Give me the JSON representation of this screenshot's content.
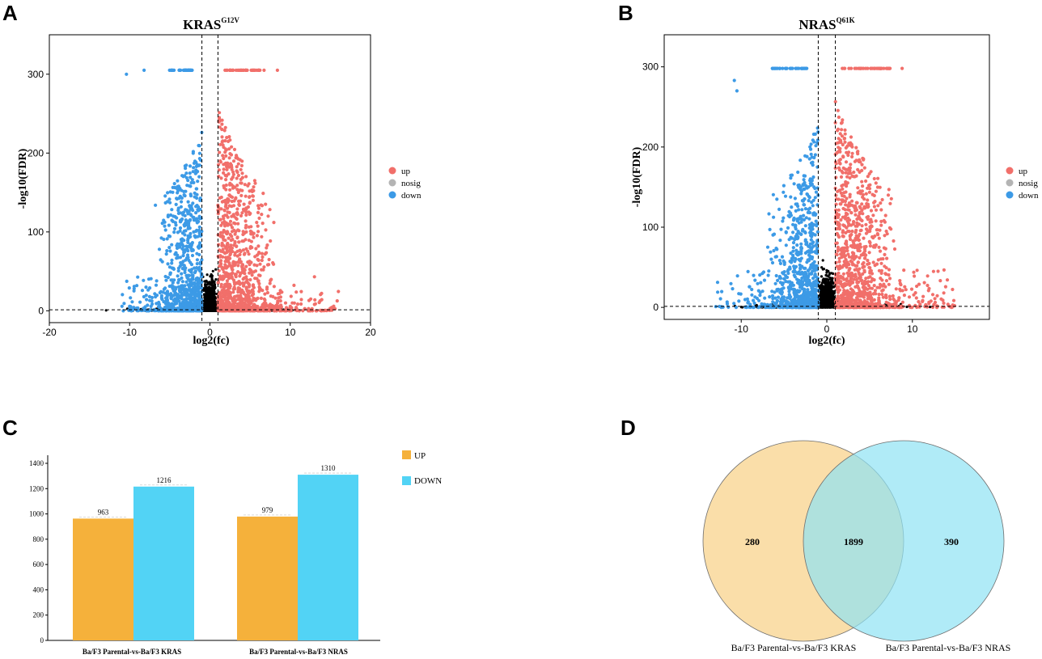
{
  "panels": {
    "a": "A",
    "b": "B",
    "c": "C",
    "d": "D"
  },
  "colors": {
    "up": "#f16f6a",
    "nosig": "#b4b4b4",
    "down": "#3c9ae6",
    "bar_up": "#f5b13b",
    "bar_down": "#52d3f5",
    "venn_left": "#f9d89a",
    "venn_right": "#8ee3f3",
    "venn_overlap": "#9ac7ad"
  },
  "chart_data": [
    {
      "id": "A",
      "type": "scatter",
      "title": "KRAS",
      "title_sup": "G12V",
      "xlabel": "log2(fc)",
      "ylabel": "-log10(FDR)",
      "xlim": [
        -20,
        20
      ],
      "ylim": [
        -15,
        350
      ],
      "xticks": [
        -20,
        -10,
        0,
        10,
        20
      ],
      "yticks": [
        0,
        100,
        200,
        300
      ],
      "thresholds": {
        "fc": [
          -1,
          1
        ],
        "fdr": 1.3
      },
      "legend": [
        "up",
        "nosig",
        "down"
      ],
      "series": [
        {
          "name": "up",
          "summary": "points with log2(fc) > 1, spread up to ~16, -log10(FDR) up to 305 (capped)"
        },
        {
          "name": "nosig",
          "summary": "points near -log10(FDR) = 0"
        },
        {
          "name": "down",
          "summary": "points with log2(fc) < -1, down to ~-11, -log10(FDR) up to 305 (capped)"
        }
      ]
    },
    {
      "id": "B",
      "type": "scatter",
      "title": "NRAS",
      "title_sup": "Q61K",
      "xlabel": "log2(fc)",
      "ylabel": "-log10(FDR)",
      "xlim": [
        -19,
        19
      ],
      "ylim": [
        -15,
        340
      ],
      "xticks": [
        -10,
        0,
        10
      ],
      "yticks": [
        0,
        100,
        200,
        300
      ],
      "thresholds": {
        "fc": [
          -1,
          1
        ],
        "fdr": 1.3
      },
      "legend": [
        "up",
        "nosig",
        "down"
      ],
      "series": [
        {
          "name": "up",
          "summary": "points with log2(fc) > 1, spread up to ~15, -log10(FDR) up to 298 (capped)"
        },
        {
          "name": "nosig",
          "summary": "points near -log10(FDR) = 0"
        },
        {
          "name": "down",
          "summary": "points with log2(fc) < -1, down to ~-13, -log10(FDR) up to 298 (capped)"
        }
      ]
    },
    {
      "id": "C",
      "type": "bar",
      "categories": [
        "Ba/F3 Parental-vs-Ba/F3 KRAS",
        "Ba/F3 Parental-vs-Ba/F3 NRAS"
      ],
      "series": [
        {
          "name": "UP",
          "values": [
            963,
            979
          ]
        },
        {
          "name": "DOWN",
          "values": [
            1216,
            1310
          ]
        }
      ],
      "value_labels": [
        [
          "963",
          "1216"
        ],
        [
          "979",
          "1310"
        ]
      ],
      "ylim": [
        0,
        1400
      ],
      "yticks": [
        0,
        200,
        400,
        600,
        800,
        1000,
        1200,
        1400
      ],
      "legend": [
        "UP",
        "DOWN"
      ]
    },
    {
      "id": "D",
      "type": "venn",
      "sets": [
        "Ba/F3 Parental-vs-Ba/F3 KRAS",
        "Ba/F3 Parental-vs-Ba/F3 NRAS"
      ],
      "only_left": 280,
      "overlap": 1899,
      "only_right": 390
    }
  ]
}
